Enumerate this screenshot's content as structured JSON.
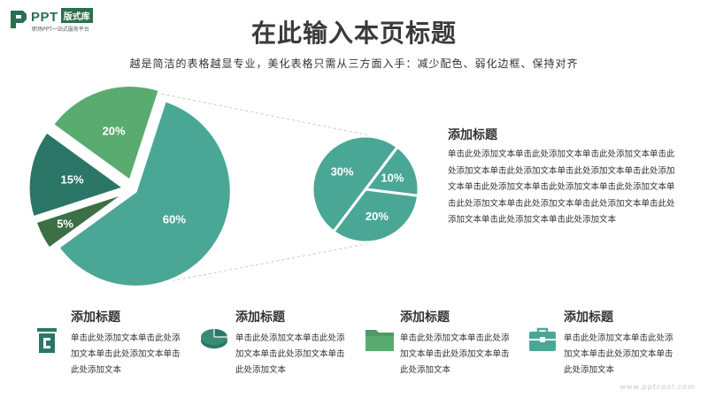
{
  "logo": {
    "name": "PPT",
    "badge": "版式库",
    "tagline": "职场PPT一站式服务平台"
  },
  "title": "在此输入本页标题",
  "subtitle": "越是简洁的表格越显专业，美化表格只需从三方面入手：减少配色、弱化边框、保持对齐",
  "colors": {
    "green": "#5aab6f",
    "teal": "#4aa796",
    "dark_teal": "#2b7667",
    "dark_green": "#3d6f47",
    "text": "#333333"
  },
  "chart_data": [
    {
      "type": "pie",
      "categories": [
        "",
        "",
        "",
        ""
      ],
      "values": [
        60,
        5,
        15,
        20
      ],
      "labels": [
        "60%",
        "5%",
        "15%",
        "20%"
      ],
      "colors": [
        "#4aa796",
        "#3d6f47",
        "#2b7667",
        "#5aab6f"
      ],
      "title": ""
    },
    {
      "type": "pie",
      "categories": [
        "",
        "",
        ""
      ],
      "values": [
        10,
        20,
        30
      ],
      "labels": [
        "10%",
        "20%",
        "30%"
      ],
      "colors": [
        "#4aa796",
        "#4aa796",
        "#4aa796"
      ],
      "title": ""
    }
  ],
  "side_text": {
    "heading": "添加标题",
    "body": "单击此处添加文本单击此处添加文本单击此处添加文本单击此处添加文本单击此处添加文本单击此处添加文本单击此处添加文本单击此处添加文本单击此处添加文本单击此处添加文本单击此处添加文本单击此处添加文本单击此处添加文本单击此处添加文本单击此处添加文本单击此处添加文本"
  },
  "features": [
    {
      "icon": "trash-bin-icon",
      "heading": "添加标题",
      "body": "单击此处添加文本单击此处添加文本单击此处添加文本单击此处添加文本"
    },
    {
      "icon": "pie-chart-icon",
      "heading": "添加标题",
      "body": "单击此处添加文本单击此处添加文本单击此处添加文本单击此处添加文本"
    },
    {
      "icon": "folder-icon",
      "heading": "添加标题",
      "body": "单击此处添加文本单击此处添加文本单击此处添加文本单击此处添加文本"
    },
    {
      "icon": "briefcase-icon",
      "heading": "添加标题",
      "body": "单击此处添加文本单击此处添加文本单击此处添加文本单击此处添加文本"
    }
  ],
  "watermark": "www.pptcool.com"
}
